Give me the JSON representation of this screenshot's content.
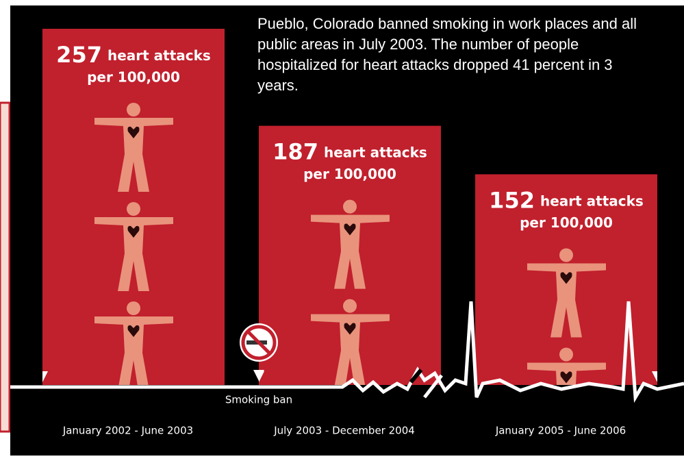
{
  "chart_data": {
    "type": "bar",
    "title": "Pueblo, Colorado banned smoking in work places and all public areas in July 2003. The number of people hospitalized for heart attacks dropped 41 percent in 3 years.",
    "categories": [
      "January 2002 - June 2003",
      "July 2003 - December 2004",
      "January 2005 - June 2006"
    ],
    "values": [
      257,
      187,
      152
    ],
    "value_unit": [
      "heart attacks",
      "per 100,000"
    ],
    "annotation": "Smoking ban",
    "color": "#c1202d"
  }
}
